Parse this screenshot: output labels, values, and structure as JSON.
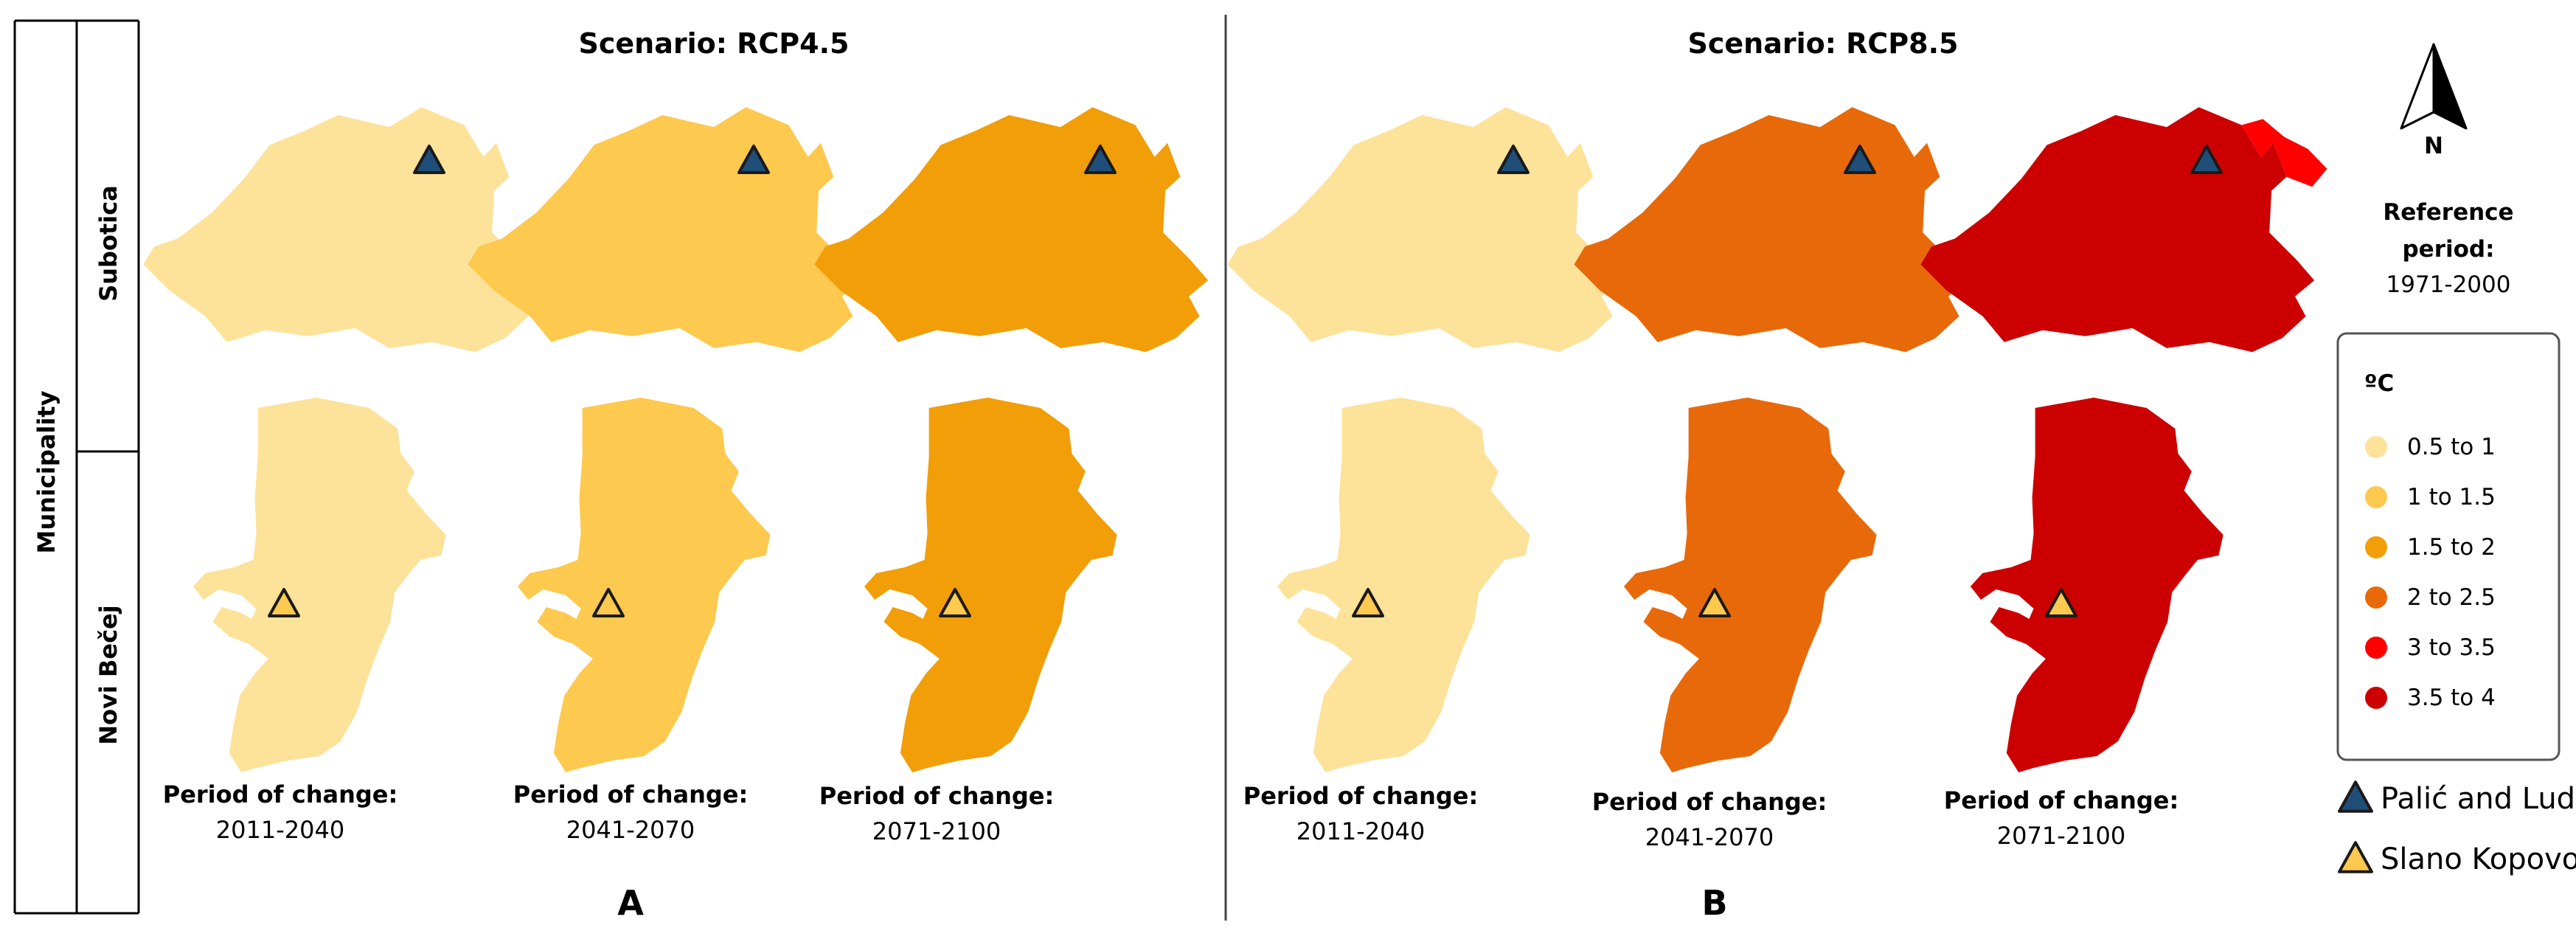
{
  "colors": {
    "pale": "#FDE29A",
    "light": "#FDC94F",
    "orange": "#F19E09",
    "dark_orange": "#E8690A",
    "red": "#FF0000",
    "dark_red": "#CC0000",
    "palic_marker": "#1F4E79",
    "slano_marker": "#FDC94F",
    "border": "#222222"
  },
  "row_header": {
    "group_label": "Municipality",
    "rows": [
      "Subotica",
      "Novi Bečej"
    ]
  },
  "panels": [
    {
      "id": "A",
      "title": "Scenario: RCP4.5",
      "label": "A",
      "columns": [
        {
          "period_label": "Period of change:",
          "years": "2011-2040",
          "subotica_class": "0.5 to 1",
          "novi_becej_class": "0.5 to 1"
        },
        {
          "period_label": "Period of change:",
          "years": "2041-2070",
          "subotica_class": "1 to 1.5",
          "novi_becej_class": "1 to 1.5"
        },
        {
          "period_label": "Period of change:",
          "years": "2071-2100",
          "subotica_class": "1.5 to 2",
          "novi_becej_class": "1.5 to 2"
        }
      ]
    },
    {
      "id": "B",
      "title": "Scenario: RCP8.5",
      "label": "B",
      "columns": [
        {
          "period_label": "Period of change:",
          "years": "2011-2040",
          "subotica_class": "0.5 to 1",
          "novi_becej_class": "0.5 to 1"
        },
        {
          "period_label": "Period of change:",
          "years": "2041-2070",
          "subotica_class": "2 to 2.5",
          "novi_becej_class": "2 to 2.5"
        },
        {
          "period_label": "Period of change:",
          "years": "2071-2100",
          "subotica_class": "3.5 to 4",
          "novi_becej_class": "3.5 to 4",
          "subotica_secondary_class": "3 to 3.5"
        }
      ]
    }
  ],
  "north_arrow": {
    "label": "N"
  },
  "reference": {
    "line1": "Reference",
    "line2": "period:",
    "years": "1971-2000"
  },
  "legend": {
    "unit": "ºC",
    "classes": [
      {
        "label": "0.5 to 1",
        "color": "#FDE29A"
      },
      {
        "label": "1 to 1.5",
        "color": "#FDC94F"
      },
      {
        "label": "1.5 to 2",
        "color": "#F19E09"
      },
      {
        "label": "2 to 2.5",
        "color": "#E8690A"
      },
      {
        "label": "3 to 3.5",
        "color": "#FF0000"
      },
      {
        "label": "3.5 to 4",
        "color": "#CC0000"
      }
    ]
  },
  "markers": [
    {
      "name": "Palić and Ludaš",
      "color": "#1F4E79",
      "municipality": "Subotica"
    },
    {
      "name": "Slano Kopovo",
      "color": "#FDC94F",
      "municipality": "Novi Bečej"
    }
  ]
}
